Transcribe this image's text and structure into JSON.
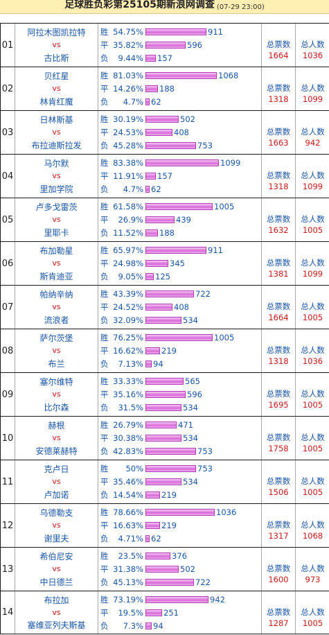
{
  "header": {
    "title": "足球胜负彩第25105期新浪网调查",
    "time": "(07-29 23:00)"
  },
  "labels": {
    "win": "胜",
    "draw": "平",
    "loss": "负",
    "vs": "vs",
    "total_votes": "总票数",
    "total_people": "总人数"
  },
  "matches": [
    {
      "no": "01",
      "home": "阿拉木图凯拉特",
      "away": "古比斯",
      "win": {
        "pct": "54.75%",
        "count": 911
      },
      "draw": {
        "pct": "35.82%",
        "count": 596
      },
      "loss": {
        "pct": "9.44%",
        "count": 157
      },
      "total_votes": "1664",
      "total_people": "1036"
    },
    {
      "no": "02",
      "home": "贝红星",
      "away": "林肯红魔",
      "win": {
        "pct": "81.03%",
        "count": 1068
      },
      "draw": {
        "pct": "14.26%",
        "count": 188
      },
      "loss": {
        "pct": "4.7%",
        "count": 62
      },
      "total_votes": "1318",
      "total_people": "1099"
    },
    {
      "no": "03",
      "home": "日林斯基",
      "away": "布拉迪斯拉发",
      "win": {
        "pct": "30.19%",
        "count": 502
      },
      "draw": {
        "pct": "24.53%",
        "count": 408
      },
      "loss": {
        "pct": "45.28%",
        "count": 753
      },
      "total_votes": "1663",
      "total_people": "942"
    },
    {
      "no": "04",
      "home": "马尔默",
      "away": "里加学院",
      "win": {
        "pct": "83.38%",
        "count": 1099
      },
      "draw": {
        "pct": "11.91%",
        "count": 157
      },
      "loss": {
        "pct": "4.7%",
        "count": 62
      },
      "total_votes": "1318",
      "total_people": "1099"
    },
    {
      "no": "05",
      "home": "卢多戈雷茨",
      "away": "里耶卡",
      "win": {
        "pct": "61.58%",
        "count": 1005
      },
      "draw": {
        "pct": "26.9%",
        "count": 439
      },
      "loss": {
        "pct": "11.52%",
        "count": 188
      },
      "total_votes": "1632",
      "total_people": "1005"
    },
    {
      "no": "06",
      "home": "布加勒星",
      "away": "斯肯迪亚",
      "win": {
        "pct": "65.97%",
        "count": 911
      },
      "draw": {
        "pct": "24.98%",
        "count": 345
      },
      "loss": {
        "pct": "9.05%",
        "count": 125
      },
      "total_votes": "1381",
      "total_people": "1099"
    },
    {
      "no": "07",
      "home": "帕纳辛纳",
      "away": "流浪者",
      "win": {
        "pct": "43.39%",
        "count": 722
      },
      "draw": {
        "pct": "24.52%",
        "count": 408
      },
      "loss": {
        "pct": "32.09%",
        "count": 534
      },
      "total_votes": "1664",
      "total_people": "1005"
    },
    {
      "no": "08",
      "home": "萨尔茨堡",
      "away": "布兰",
      "win": {
        "pct": "76.25%",
        "count": 1005
      },
      "draw": {
        "pct": "16.62%",
        "count": 219
      },
      "loss": {
        "pct": "7.13%",
        "count": 94
      },
      "total_votes": "1318",
      "total_people": "1036"
    },
    {
      "no": "09",
      "home": "塞尔维特",
      "away": "比尔森",
      "win": {
        "pct": "33.33%",
        "count": 565
      },
      "draw": {
        "pct": "35.16%",
        "count": 596
      },
      "loss": {
        "pct": "31.5%",
        "count": 534
      },
      "total_votes": "1695",
      "total_people": "1005"
    },
    {
      "no": "10",
      "home": "赫根",
      "away": "安德莱赫特",
      "win": {
        "pct": "26.79%",
        "count": 471
      },
      "draw": {
        "pct": "30.38%",
        "count": 534
      },
      "loss": {
        "pct": "42.83%",
        "count": 753
      },
      "total_votes": "1758",
      "total_people": "1005"
    },
    {
      "no": "11",
      "home": "克卢日",
      "away": "卢加诺",
      "win": {
        "pct": "50%",
        "count": 753
      },
      "draw": {
        "pct": "35.46%",
        "count": 534
      },
      "loss": {
        "pct": "14.54%",
        "count": 219
      },
      "total_votes": "1506",
      "total_people": "1005"
    },
    {
      "no": "12",
      "home": "乌德勒支",
      "away": "谢里夫",
      "win": {
        "pct": "78.66%",
        "count": 1036
      },
      "draw": {
        "pct": "16.63%",
        "count": 219
      },
      "loss": {
        "pct": "4.71%",
        "count": 62
      },
      "total_votes": "1317",
      "total_people": "1068"
    },
    {
      "no": "13",
      "home": "希伯尼安",
      "away": "中日德兰",
      "win": {
        "pct": "23.5%",
        "count": 376
      },
      "draw": {
        "pct": "31.38%",
        "count": 502
      },
      "loss": {
        "pct": "45.13%",
        "count": 722
      },
      "total_votes": "1600",
      "total_people": "973"
    },
    {
      "no": "14",
      "home": "布拉加",
      "away": "塞维亚列夫斯基",
      "win": {
        "pct": "73.19%",
        "count": 942
      },
      "draw": {
        "pct": "19.5%",
        "count": 251
      },
      "loss": {
        "pct": "7.3%",
        "count": 94
      },
      "total_votes": "1287",
      "total_people": "1005"
    }
  ]
}
